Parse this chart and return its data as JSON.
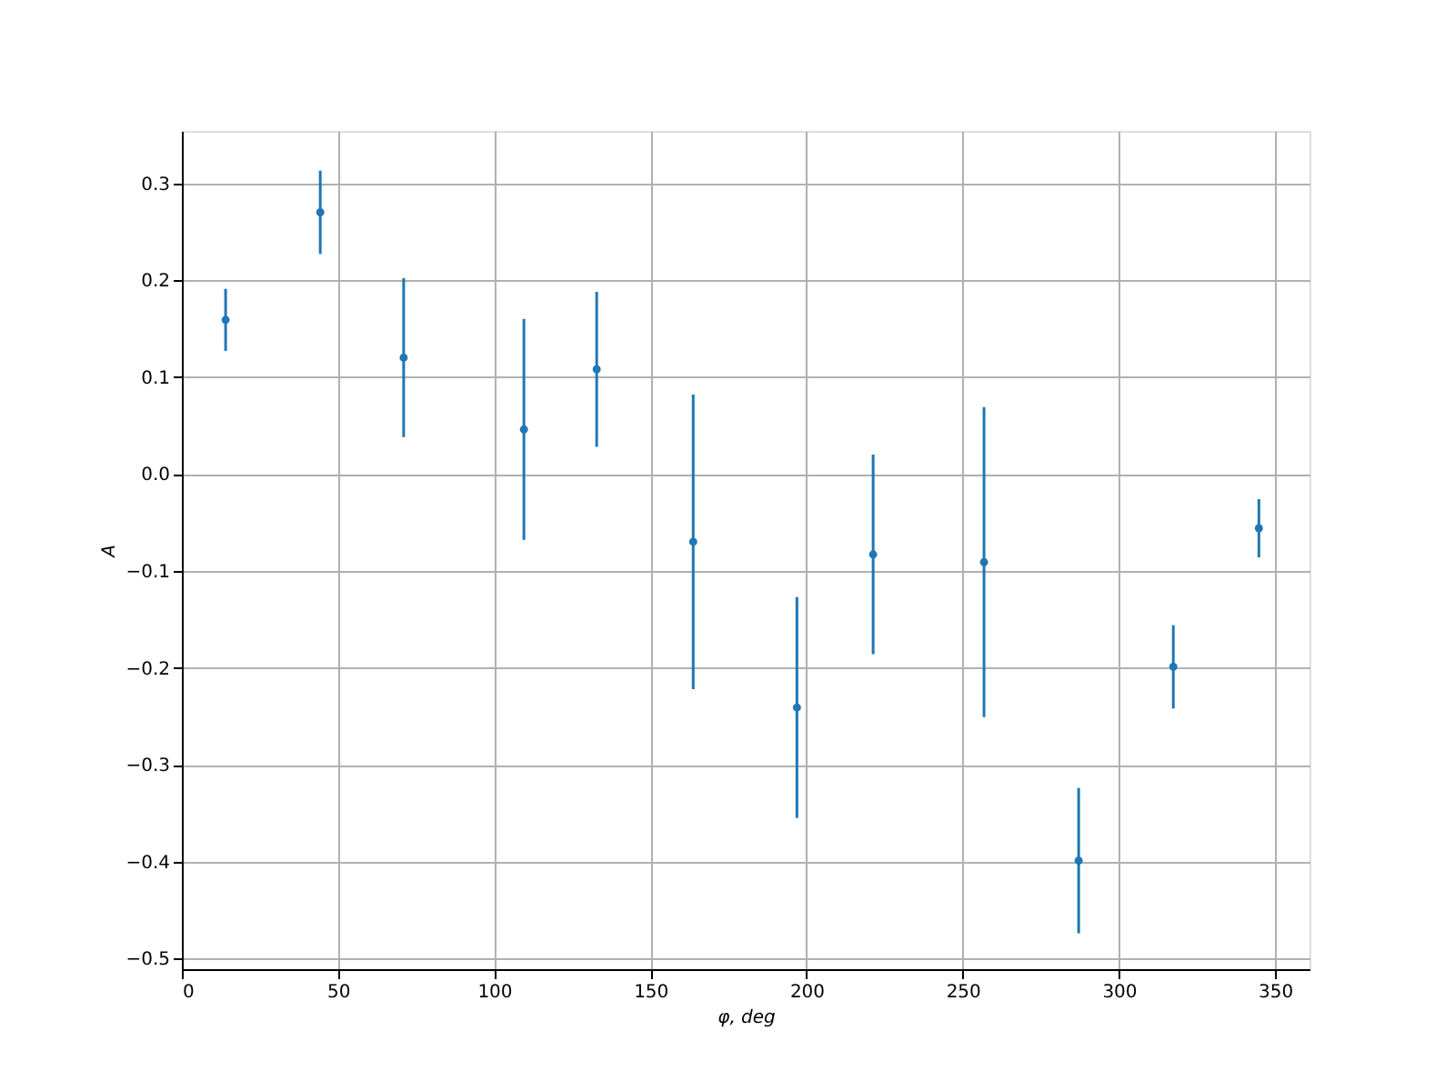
{
  "chart_data": {
    "type": "scatter",
    "xlabel": "φ, deg",
    "ylabel": "A",
    "x": [
      14,
      44.3,
      71,
      109.5,
      132.8,
      163.7,
      196.9,
      221.3,
      256.8,
      287.1,
      317.4,
      344.8
    ],
    "color": "#1f77b4",
    "values": [
      0.159,
      0.27,
      0.12,
      0.046,
      0.108,
      -0.07,
      -0.241,
      -0.083,
      -0.091,
      -0.399,
      -0.199,
      -0.056
    ],
    "errors": [
      0.032,
      0.043,
      0.082,
      0.114,
      0.08,
      0.152,
      0.114,
      0.103,
      0.16,
      0.075,
      0.043,
      0.03
    ],
    "xlim": [
      0,
      361
    ],
    "ylim": [
      -0.511,
      0.354
    ],
    "xticks": [
      0,
      50,
      100,
      150,
      200,
      250,
      300,
      350
    ],
    "yticks": [
      {
        "value": -0.5,
        "label": "−0.5"
      },
      {
        "value": -0.4,
        "label": "−0.4"
      },
      {
        "value": -0.3,
        "label": "−0.3"
      },
      {
        "value": -0.2,
        "label": "−0.2"
      },
      {
        "value": -0.1,
        "label": "−0.1"
      },
      {
        "value": 0,
        "label": "0.0"
      },
      {
        "value": 0.1,
        "label": "0.1"
      },
      {
        "value": 0.2,
        "label": "0.2"
      },
      {
        "value": 0.3,
        "label": "0.3"
      }
    ],
    "grid": true,
    "marker": "circle"
  }
}
